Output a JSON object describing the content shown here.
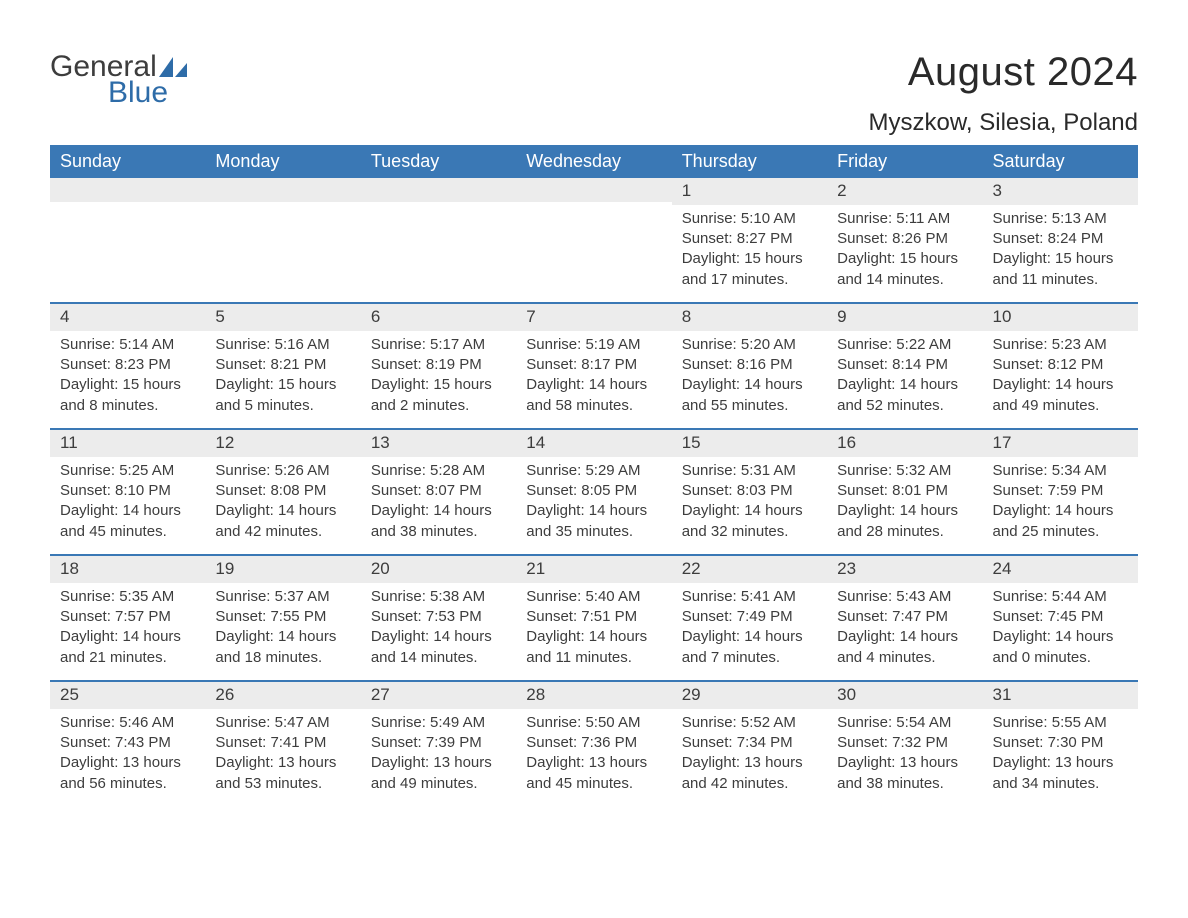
{
  "brand": {
    "name1": "General",
    "name2": "Blue",
    "color": "#2e6ca8"
  },
  "title": "August 2024",
  "location": "Myszkow, Silesia, Poland",
  "colors": {
    "header_bg": "#3a78b5",
    "header_text": "#ffffff",
    "daynum_bg": "#ececec",
    "row_border": "#3a78b5",
    "body_text": "#3d3d3d",
    "page_bg": "#ffffff"
  },
  "typography": {
    "title_fontsize": 40,
    "location_fontsize": 24,
    "weekday_fontsize": 18,
    "daynum_fontsize": 17,
    "body_fontsize": 15
  },
  "layout": {
    "columns": 7,
    "rows": 5,
    "aspect_w": 1188,
    "aspect_h": 918
  },
  "weekdays": [
    "Sunday",
    "Monday",
    "Tuesday",
    "Wednesday",
    "Thursday",
    "Friday",
    "Saturday"
  ],
  "weeks": [
    [
      {
        "day": "",
        "sunrise": "",
        "sunset": "",
        "daylight": ""
      },
      {
        "day": "",
        "sunrise": "",
        "sunset": "",
        "daylight": ""
      },
      {
        "day": "",
        "sunrise": "",
        "sunset": "",
        "daylight": ""
      },
      {
        "day": "",
        "sunrise": "",
        "sunset": "",
        "daylight": ""
      },
      {
        "day": "1",
        "sunrise": "Sunrise: 5:10 AM",
        "sunset": "Sunset: 8:27 PM",
        "daylight": "Daylight: 15 hours and 17 minutes."
      },
      {
        "day": "2",
        "sunrise": "Sunrise: 5:11 AM",
        "sunset": "Sunset: 8:26 PM",
        "daylight": "Daylight: 15 hours and 14 minutes."
      },
      {
        "day": "3",
        "sunrise": "Sunrise: 5:13 AM",
        "sunset": "Sunset: 8:24 PM",
        "daylight": "Daylight: 15 hours and 11 minutes."
      }
    ],
    [
      {
        "day": "4",
        "sunrise": "Sunrise: 5:14 AM",
        "sunset": "Sunset: 8:23 PM",
        "daylight": "Daylight: 15 hours and 8 minutes."
      },
      {
        "day": "5",
        "sunrise": "Sunrise: 5:16 AM",
        "sunset": "Sunset: 8:21 PM",
        "daylight": "Daylight: 15 hours and 5 minutes."
      },
      {
        "day": "6",
        "sunrise": "Sunrise: 5:17 AM",
        "sunset": "Sunset: 8:19 PM",
        "daylight": "Daylight: 15 hours and 2 minutes."
      },
      {
        "day": "7",
        "sunrise": "Sunrise: 5:19 AM",
        "sunset": "Sunset: 8:17 PM",
        "daylight": "Daylight: 14 hours and 58 minutes."
      },
      {
        "day": "8",
        "sunrise": "Sunrise: 5:20 AM",
        "sunset": "Sunset: 8:16 PM",
        "daylight": "Daylight: 14 hours and 55 minutes."
      },
      {
        "day": "9",
        "sunrise": "Sunrise: 5:22 AM",
        "sunset": "Sunset: 8:14 PM",
        "daylight": "Daylight: 14 hours and 52 minutes."
      },
      {
        "day": "10",
        "sunrise": "Sunrise: 5:23 AM",
        "sunset": "Sunset: 8:12 PM",
        "daylight": "Daylight: 14 hours and 49 minutes."
      }
    ],
    [
      {
        "day": "11",
        "sunrise": "Sunrise: 5:25 AM",
        "sunset": "Sunset: 8:10 PM",
        "daylight": "Daylight: 14 hours and 45 minutes."
      },
      {
        "day": "12",
        "sunrise": "Sunrise: 5:26 AM",
        "sunset": "Sunset: 8:08 PM",
        "daylight": "Daylight: 14 hours and 42 minutes."
      },
      {
        "day": "13",
        "sunrise": "Sunrise: 5:28 AM",
        "sunset": "Sunset: 8:07 PM",
        "daylight": "Daylight: 14 hours and 38 minutes."
      },
      {
        "day": "14",
        "sunrise": "Sunrise: 5:29 AM",
        "sunset": "Sunset: 8:05 PM",
        "daylight": "Daylight: 14 hours and 35 minutes."
      },
      {
        "day": "15",
        "sunrise": "Sunrise: 5:31 AM",
        "sunset": "Sunset: 8:03 PM",
        "daylight": "Daylight: 14 hours and 32 minutes."
      },
      {
        "day": "16",
        "sunrise": "Sunrise: 5:32 AM",
        "sunset": "Sunset: 8:01 PM",
        "daylight": "Daylight: 14 hours and 28 minutes."
      },
      {
        "day": "17",
        "sunrise": "Sunrise: 5:34 AM",
        "sunset": "Sunset: 7:59 PM",
        "daylight": "Daylight: 14 hours and 25 minutes."
      }
    ],
    [
      {
        "day": "18",
        "sunrise": "Sunrise: 5:35 AM",
        "sunset": "Sunset: 7:57 PM",
        "daylight": "Daylight: 14 hours and 21 minutes."
      },
      {
        "day": "19",
        "sunrise": "Sunrise: 5:37 AM",
        "sunset": "Sunset: 7:55 PM",
        "daylight": "Daylight: 14 hours and 18 minutes."
      },
      {
        "day": "20",
        "sunrise": "Sunrise: 5:38 AM",
        "sunset": "Sunset: 7:53 PM",
        "daylight": "Daylight: 14 hours and 14 minutes."
      },
      {
        "day": "21",
        "sunrise": "Sunrise: 5:40 AM",
        "sunset": "Sunset: 7:51 PM",
        "daylight": "Daylight: 14 hours and 11 minutes."
      },
      {
        "day": "22",
        "sunrise": "Sunrise: 5:41 AM",
        "sunset": "Sunset: 7:49 PM",
        "daylight": "Daylight: 14 hours and 7 minutes."
      },
      {
        "day": "23",
        "sunrise": "Sunrise: 5:43 AM",
        "sunset": "Sunset: 7:47 PM",
        "daylight": "Daylight: 14 hours and 4 minutes."
      },
      {
        "day": "24",
        "sunrise": "Sunrise: 5:44 AM",
        "sunset": "Sunset: 7:45 PM",
        "daylight": "Daylight: 14 hours and 0 minutes."
      }
    ],
    [
      {
        "day": "25",
        "sunrise": "Sunrise: 5:46 AM",
        "sunset": "Sunset: 7:43 PM",
        "daylight": "Daylight: 13 hours and 56 minutes."
      },
      {
        "day": "26",
        "sunrise": "Sunrise: 5:47 AM",
        "sunset": "Sunset: 7:41 PM",
        "daylight": "Daylight: 13 hours and 53 minutes."
      },
      {
        "day": "27",
        "sunrise": "Sunrise: 5:49 AM",
        "sunset": "Sunset: 7:39 PM",
        "daylight": "Daylight: 13 hours and 49 minutes."
      },
      {
        "day": "28",
        "sunrise": "Sunrise: 5:50 AM",
        "sunset": "Sunset: 7:36 PM",
        "daylight": "Daylight: 13 hours and 45 minutes."
      },
      {
        "day": "29",
        "sunrise": "Sunrise: 5:52 AM",
        "sunset": "Sunset: 7:34 PM",
        "daylight": "Daylight: 13 hours and 42 minutes."
      },
      {
        "day": "30",
        "sunrise": "Sunrise: 5:54 AM",
        "sunset": "Sunset: 7:32 PM",
        "daylight": "Daylight: 13 hours and 38 minutes."
      },
      {
        "day": "31",
        "sunrise": "Sunrise: 5:55 AM",
        "sunset": "Sunset: 7:30 PM",
        "daylight": "Daylight: 13 hours and 34 minutes."
      }
    ]
  ]
}
